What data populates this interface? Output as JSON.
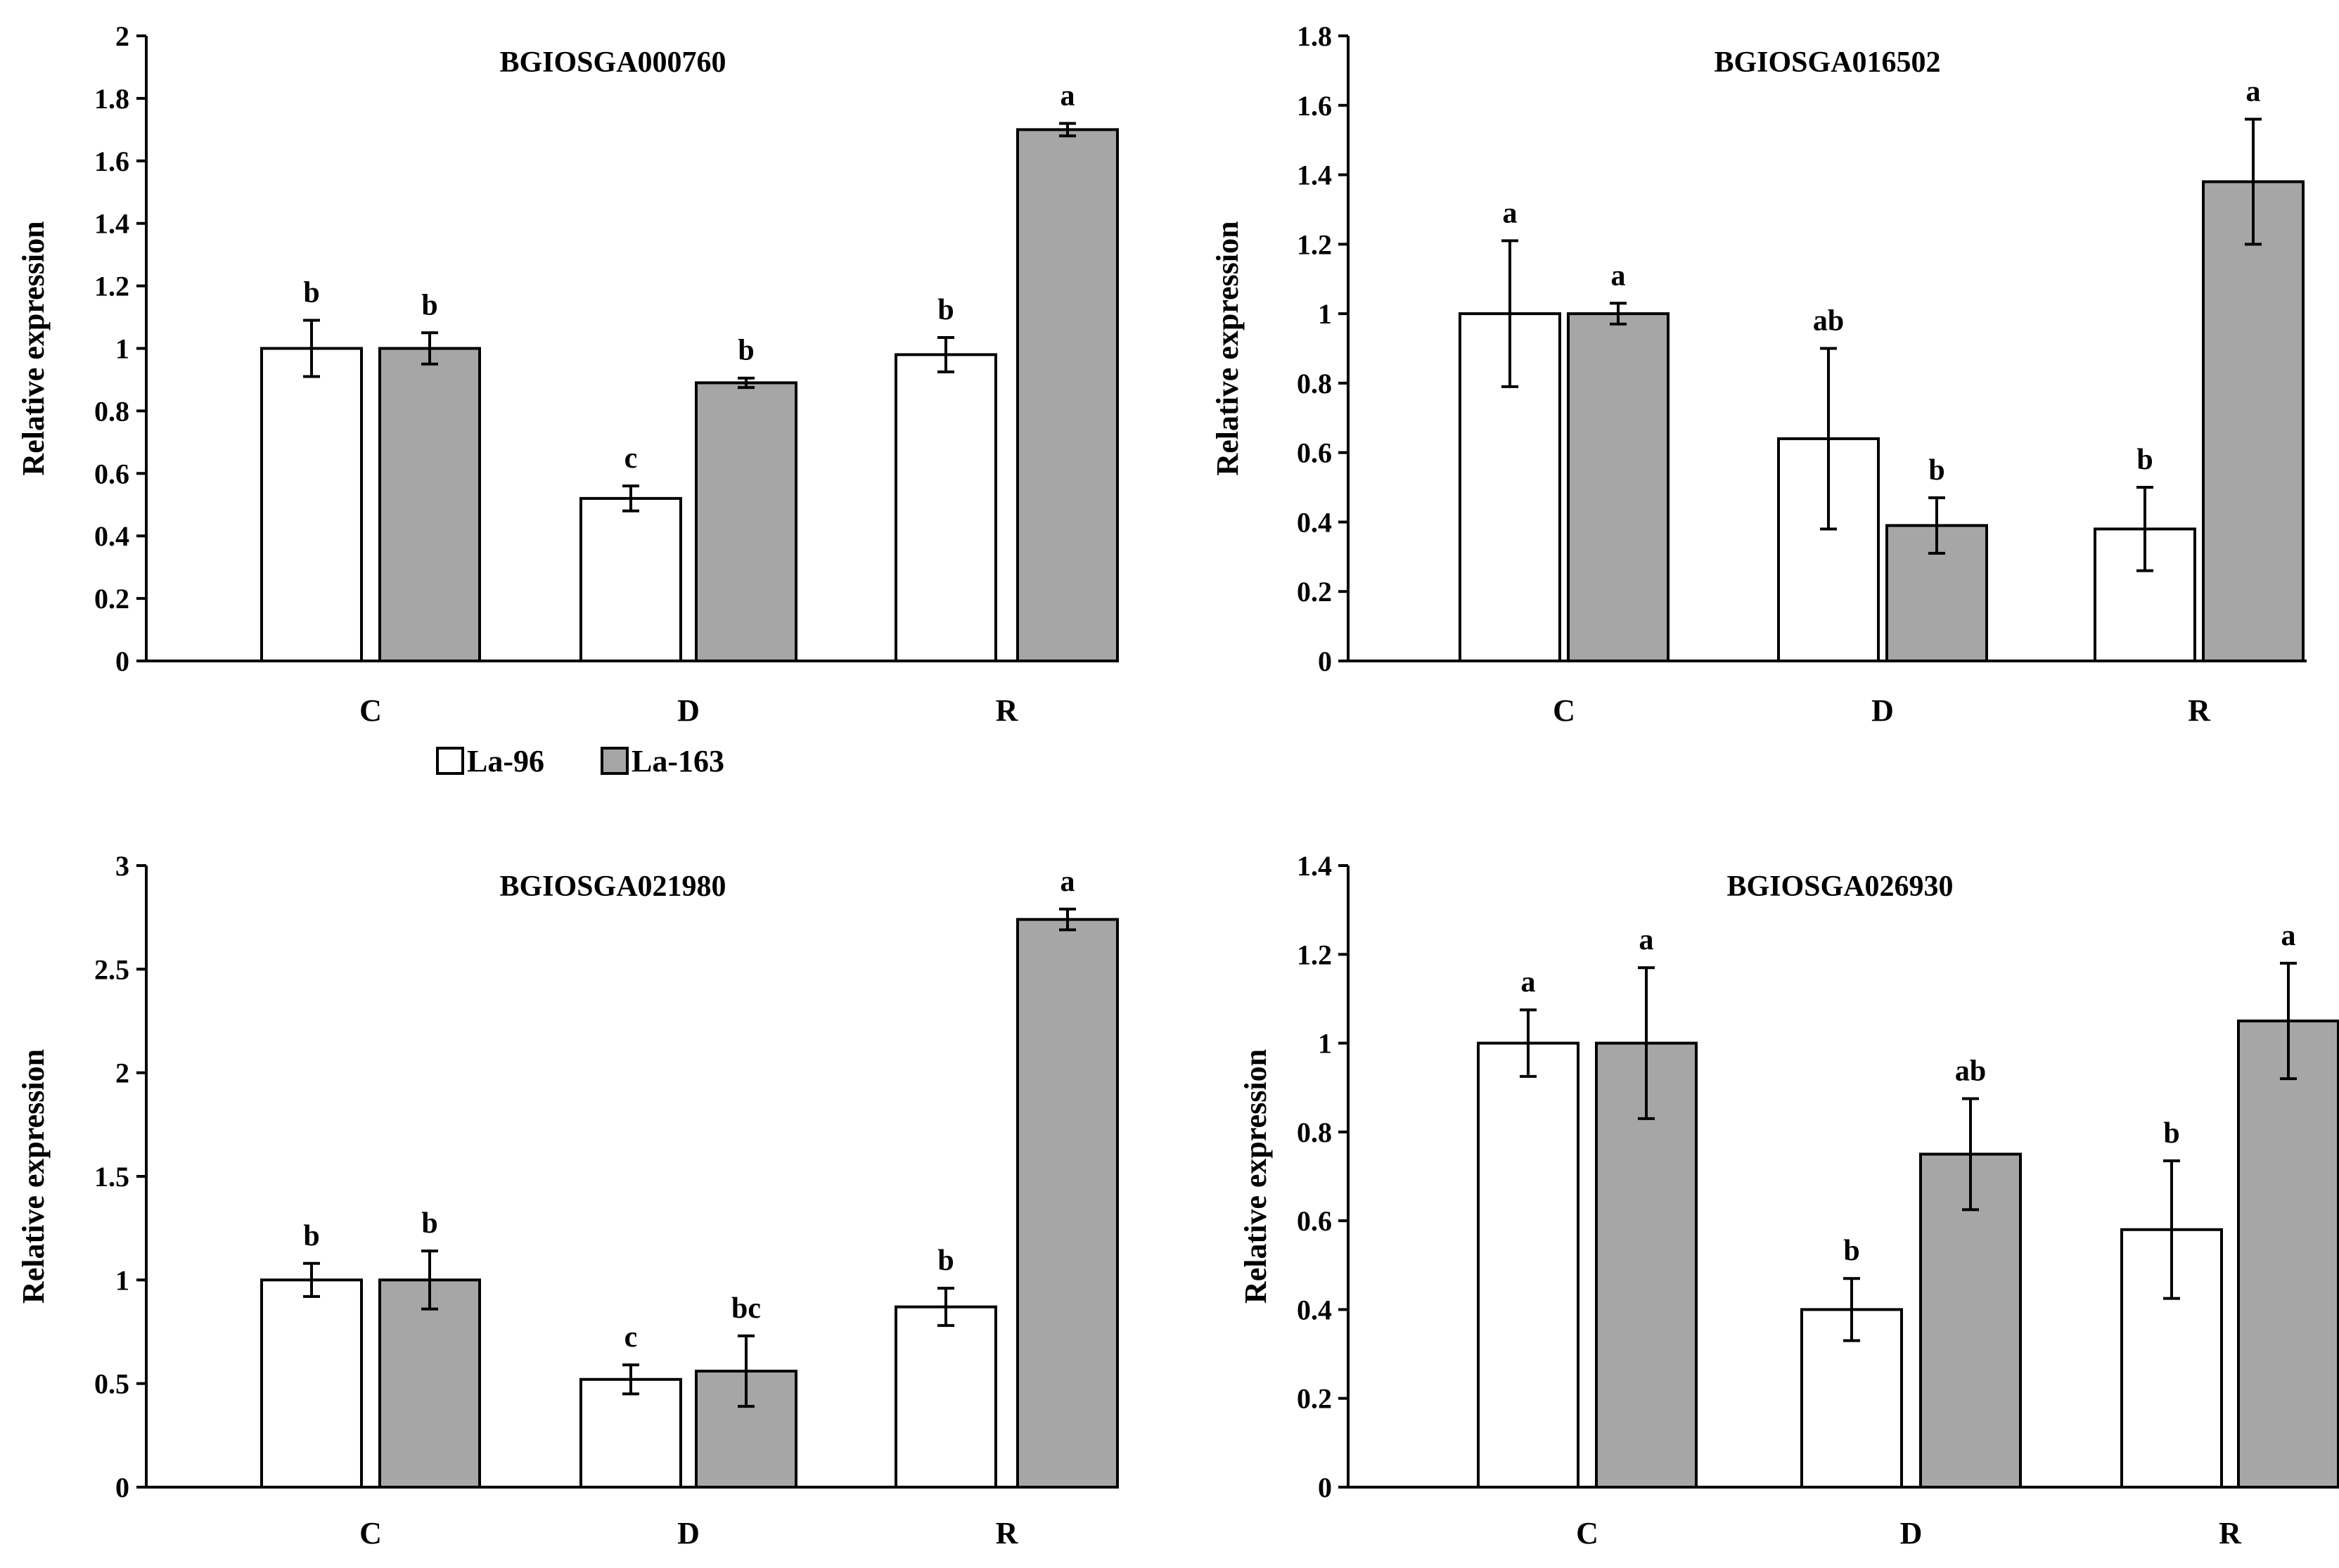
{
  "legend": {
    "items": [
      {
        "label": "La-96",
        "color": "#ffffff"
      },
      {
        "label": "La-163",
        "color": "#a6a6a6"
      }
    ]
  },
  "colors": {
    "axis": "#000000",
    "bar_stroke": "#000000"
  },
  "chart_data": [
    {
      "type": "bar",
      "title": "BGIOSGA000760",
      "xlabel": "",
      "ylabel": "Relative expression",
      "ylim": [
        0,
        2
      ],
      "yticks": [
        "0",
        "0.2",
        "0.4",
        "0.6",
        "0.8",
        "1",
        "1.2",
        "1.4",
        "1.6",
        "1.8",
        "2"
      ],
      "categories": [
        "C",
        "D",
        "R"
      ],
      "series": [
        {
          "name": "La-96",
          "values": [
            1.0,
            0.52,
            0.98
          ],
          "errors": [
            0.09,
            0.04,
            0.055
          ],
          "labels": [
            "b",
            "c",
            "b"
          ]
        },
        {
          "name": "La-163",
          "values": [
            1.0,
            0.89,
            1.7
          ],
          "errors": [
            0.05,
            0.015,
            0.02
          ],
          "labels": [
            "b",
            "b",
            "a"
          ]
        }
      ]
    },
    {
      "type": "bar",
      "title": "BGIOSGA016502",
      "xlabel": "",
      "ylabel": "Relative expression",
      "ylim": [
        0,
        1.8
      ],
      "yticks": [
        "0",
        "0.2",
        "0.4",
        "0.6",
        "0.8",
        "1",
        "1.2",
        "1.4",
        "1.6",
        "1.8"
      ],
      "categories": [
        "C",
        "D",
        "R"
      ],
      "series": [
        {
          "name": "La-96",
          "values": [
            1.0,
            0.64,
            0.38
          ],
          "errors": [
            0.21,
            0.26,
            0.12
          ],
          "labels": [
            "a",
            "ab",
            "b"
          ]
        },
        {
          "name": "La-163",
          "values": [
            1.0,
            0.39,
            1.38
          ],
          "errors": [
            0.03,
            0.08,
            0.18
          ],
          "labels": [
            "a",
            "b",
            "a"
          ]
        }
      ]
    },
    {
      "type": "bar",
      "title": "BGIOSGA021980",
      "xlabel": "",
      "ylabel": "Relative expression",
      "ylim": [
        0,
        3
      ],
      "yticks": [
        "0",
        "0.5",
        "1",
        "1.5",
        "2",
        "2.5",
        "3"
      ],
      "categories": [
        "C",
        "D",
        "R"
      ],
      "series": [
        {
          "name": "La-96",
          "values": [
            1.0,
            0.52,
            0.87
          ],
          "errors": [
            0.08,
            0.07,
            0.09
          ],
          "labels": [
            "b",
            "c",
            "b"
          ]
        },
        {
          "name": "La-163",
          "values": [
            1.0,
            0.56,
            2.74
          ],
          "errors": [
            0.14,
            0.17,
            0.05
          ],
          "labels": [
            "b",
            "bc",
            "a"
          ]
        }
      ]
    },
    {
      "type": "bar",
      "title": "BGIOSGA026930",
      "xlabel": "",
      "ylabel": "Relative expression",
      "ylim": [
        0,
        1.4
      ],
      "yticks": [
        "0",
        "0.2",
        "0.4",
        "0.6",
        "0.8",
        "1",
        "1.2",
        "1.4"
      ],
      "categories": [
        "C",
        "D",
        "R"
      ],
      "series": [
        {
          "name": "La-96",
          "values": [
            1.0,
            0.4,
            0.58
          ],
          "errors": [
            0.075,
            0.07,
            0.155
          ],
          "labels": [
            "a",
            "b",
            "b"
          ]
        },
        {
          "name": "La-163",
          "values": [
            1.0,
            0.75,
            1.05
          ],
          "errors": [
            0.17,
            0.125,
            0.13
          ],
          "labels": [
            "a",
            "ab",
            "a"
          ]
        }
      ]
    }
  ]
}
